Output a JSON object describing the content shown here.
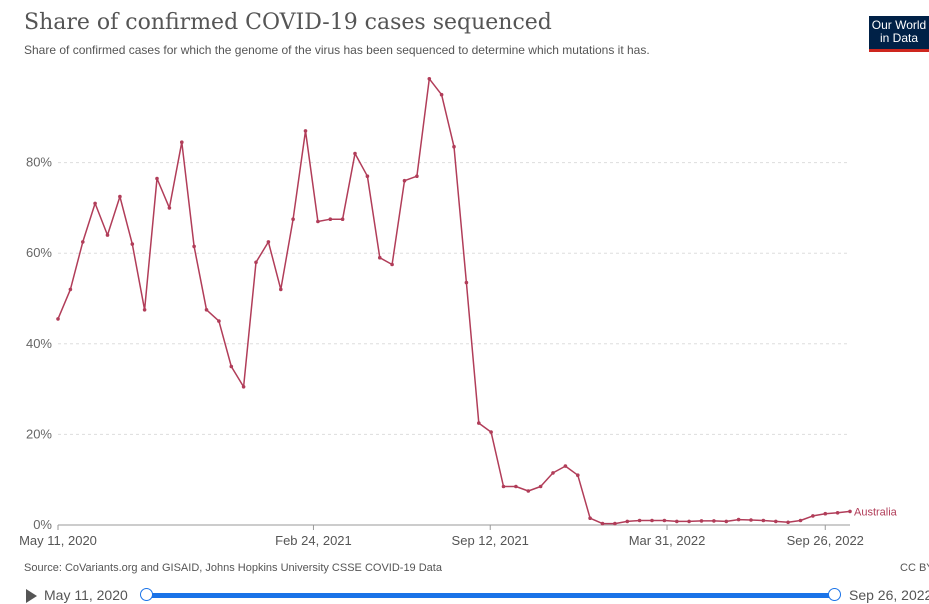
{
  "title": "Share of confirmed COVID-19 cases sequenced",
  "subtitle": "Share of confirmed cases for which the genome of the virus has been sequenced to determine which mutations it has.",
  "logo": {
    "line1": "Our World",
    "line2": "in Data",
    "bg": "#002147",
    "accent": "#ce261e"
  },
  "source": "Source: CoVariants.org and GISAID, Johns Hopkins University CSSE COVID-19 Data",
  "license": "CC BY",
  "timeline": {
    "start": "May 11, 2020",
    "end": "Sep 26, 2022",
    "accent": "#1a73e8",
    "play_icon": "play-icon"
  },
  "chart_data": {
    "type": "line",
    "title": "Share of confirmed COVID-19 cases sequenced",
    "subtitle": "Share of confirmed cases for which the genome of the virus has been sequenced to determine which mutations it has.",
    "xlabel": "",
    "ylabel": "",
    "x_range": [
      "2020-05-11",
      "2022-10-24"
    ],
    "ylim": [
      0,
      100
    ],
    "yticks": [
      0,
      20,
      40,
      60,
      80
    ],
    "ytick_labels": [
      "0%",
      "20%",
      "40%",
      "60%",
      "80%"
    ],
    "xticks": [
      "2020-05-11",
      "2021-02-24",
      "2021-09-12",
      "2022-03-31",
      "2022-09-26"
    ],
    "xtick_labels": [
      "May 11, 2020",
      "Feb 24, 2021",
      "Sep 12, 2021",
      "Mar 31, 2022",
      "Sep 26, 2022"
    ],
    "grid": true,
    "legend": "end-of-line label",
    "series": [
      {
        "name": "Australia",
        "color": "#b13d59",
        "x": [
          "2020-05-11",
          "2020-05-25",
          "2020-06-08",
          "2020-06-22",
          "2020-07-06",
          "2020-07-20",
          "2020-08-03",
          "2020-08-17",
          "2020-08-31",
          "2020-09-14",
          "2020-09-28",
          "2020-10-12",
          "2020-10-26",
          "2020-11-09",
          "2020-11-23",
          "2020-12-07",
          "2020-12-21",
          "2021-01-04",
          "2021-01-18",
          "2021-02-01",
          "2021-02-15",
          "2021-03-01",
          "2021-03-15",
          "2021-03-29",
          "2021-04-12",
          "2021-04-26",
          "2021-05-10",
          "2021-05-24",
          "2021-06-07",
          "2021-06-21",
          "2021-07-05",
          "2021-07-19",
          "2021-08-02",
          "2021-08-16",
          "2021-08-30",
          "2021-09-13",
          "2021-09-27",
          "2021-10-11",
          "2021-10-25",
          "2021-11-08",
          "2021-11-22",
          "2021-12-06",
          "2021-12-20",
          "2022-01-03",
          "2022-01-17",
          "2022-01-31",
          "2022-02-14",
          "2022-02-28",
          "2022-03-14",
          "2022-03-28",
          "2022-04-11",
          "2022-04-25",
          "2022-05-09",
          "2022-05-23",
          "2022-06-06",
          "2022-06-20",
          "2022-07-04",
          "2022-07-18",
          "2022-08-01",
          "2022-08-15",
          "2022-08-29",
          "2022-09-12",
          "2022-09-26",
          "2022-10-10",
          "2022-10-24"
        ],
        "y": [
          45.5,
          52,
          62.5,
          71,
          64,
          72.5,
          62,
          47.5,
          76.5,
          70,
          84.5,
          61.5,
          47.5,
          45,
          35,
          30.5,
          58,
          62.5,
          52,
          67.5,
          87,
          67,
          67.5,
          67.5,
          82,
          77,
          59,
          57.5,
          76,
          77,
          98.5,
          95,
          83.5,
          53.5,
          22.5,
          20.5,
          8.5,
          8.5,
          7.5,
          8.5,
          11.5,
          13,
          11,
          1.5,
          0.3,
          0.3,
          0.8,
          1,
          1,
          1,
          0.8,
          0.8,
          0.9,
          0.9,
          0.8,
          1.2,
          1.1,
          1,
          0.8,
          0.6,
          1,
          2,
          2.5,
          2.7,
          3
        ]
      }
    ]
  }
}
